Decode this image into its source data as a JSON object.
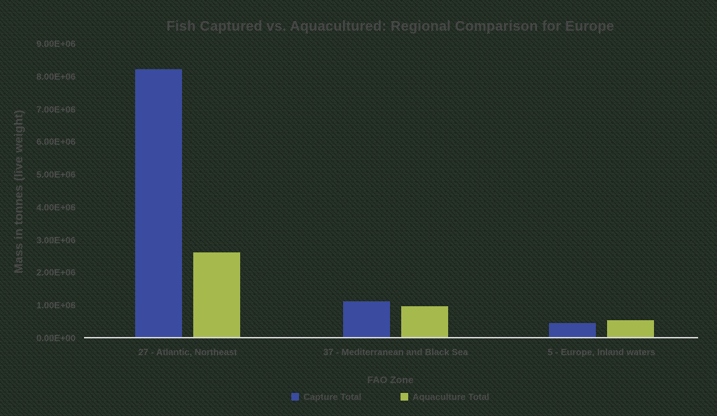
{
  "chart_data": {
    "type": "bar",
    "title": "Fish Captured vs. Aquacultured: Regional Comparison for Europe",
    "xlabel": "FAO Zone",
    "ylabel": "Mass in tonnes (live weight)",
    "categories": [
      "27 - Atlantic, Northeast",
      "37 - Mediterranean and Black Sea",
      "5 - Europe, Inland waters"
    ],
    "series": [
      {
        "name": "Capture Total",
        "color": "#3a4ba0",
        "values": [
          8200000,
          1110000,
          450000
        ]
      },
      {
        "name": "Aquaculture Total",
        "color": "#a6b94d",
        "values": [
          2600000,
          960000,
          530000
        ]
      }
    ],
    "ylim": [
      0,
      9000000
    ],
    "ytick_step": 1000000,
    "ytick_labels": [
      "0.00E+00",
      "1.00E+06",
      "2.00E+06",
      "3.00E+06",
      "4.00E+06",
      "5.00E+06",
      "6.00E+06",
      "7.00E+06",
      "8.00E+06",
      "9.00E+06"
    ],
    "grid": false,
    "legend_position": "bottom"
  },
  "colors": {
    "capture_series": "#3a4ba0",
    "aquaculture_series": "#a6b94d",
    "axis_line": "#d9d9d9",
    "text": "#4a4a4a",
    "background_base": "#465947",
    "background_speckle": "#0b100c"
  }
}
